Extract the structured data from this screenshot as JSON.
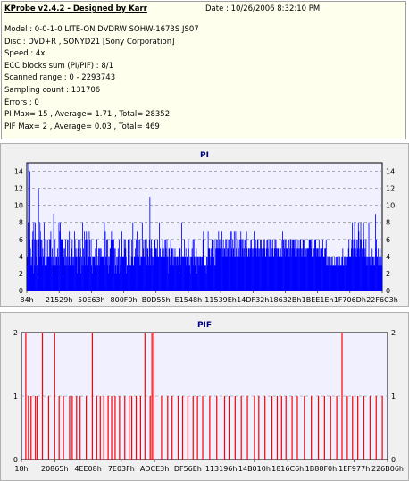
{
  "header": {
    "title": "KProbe v2.4.2 - Designed by Karr",
    "date": "Date : 10/26/2006 8:32:10 PM"
  },
  "info": [
    "Model : 0-0-1-0 LITE-ON DVDRW SOHW-1673S JS07",
    "Disc : DVD+R , SONYD21 [Sony Corporation]",
    "Speed : 4x",
    "ECC blocks sum (PI/PIF) : 8/1",
    "Scanned range : 0 - 2293743",
    "Sampling count : 131706",
    "Errors : 0",
    "PI Max= 15 , Average= 1.71 , Total= 28352",
    "PIF Max= 2 , Average= 0.03 , Total= 469"
  ],
  "colors": {
    "pi_series": "#0000ff",
    "pif_series": "#ff0000",
    "plot_bg": "#f0f0ff",
    "panel_bg": "#f0f0f0",
    "grid": "#808080"
  },
  "chart_data": [
    {
      "type": "bar",
      "title": "PI",
      "ylim": [
        0,
        15
      ],
      "yticks": [
        0,
        2,
        4,
        6,
        8,
        10,
        12,
        14
      ],
      "xticks": [
        "84h",
        "21529h",
        "50E63h",
        "800F0h",
        "B0D55h",
        "E1548h",
        "11539Eh",
        "14DF32h",
        "18632Bh",
        "1BEE1Eh",
        "1F706Dh",
        "22F6C3h"
      ],
      "grid": true,
      "series": [
        {
          "values": [
            3,
            4,
            8,
            15,
            6,
            6,
            14,
            5,
            3,
            4,
            3,
            6,
            7,
            2,
            8,
            6,
            3,
            8,
            6,
            4,
            6,
            3,
            2,
            5,
            12,
            6,
            4,
            8,
            7,
            6,
            4,
            6,
            3,
            5,
            4,
            4,
            8,
            3,
            3,
            6,
            6,
            4,
            3,
            6,
            4,
            4,
            4,
            6,
            4,
            6,
            7,
            4,
            3,
            5,
            3,
            4,
            9,
            2,
            3,
            6,
            4,
            3,
            4,
            4,
            5,
            3,
            4,
            8,
            3,
            7,
            8,
            6,
            6,
            6,
            6,
            4,
            2,
            4,
            5,
            3,
            5,
            6,
            3,
            4,
            3,
            6,
            6,
            3,
            4,
            7,
            4,
            3,
            3,
            4,
            5,
            6,
            4,
            3,
            4,
            3,
            7,
            6,
            4,
            5,
            4,
            2,
            4,
            5,
            6,
            6,
            2,
            4,
            6,
            5,
            2,
            4,
            3,
            8,
            3,
            5,
            4,
            7,
            6,
            3,
            6,
            7,
            3,
            6,
            6,
            4,
            4,
            7,
            6,
            4,
            4,
            6,
            3,
            2,
            4,
            4,
            4,
            4,
            4,
            3,
            5,
            5,
            2,
            6,
            3,
            3,
            4,
            5,
            3,
            5,
            4,
            5,
            5,
            4,
            4,
            4,
            4,
            4,
            5,
            8,
            3,
            7,
            4,
            4,
            6,
            3,
            6,
            2,
            4,
            3,
            4,
            5,
            5,
            6,
            7,
            6,
            6,
            6,
            5,
            6,
            5,
            2,
            5,
            3,
            2,
            4,
            3,
            4,
            5,
            4,
            6,
            2,
            4,
            3,
            4,
            6,
            7,
            4,
            4,
            4,
            4,
            6,
            5,
            6,
            5,
            4,
            2,
            3,
            3,
            6,
            6,
            6,
            6,
            3,
            3,
            3,
            4,
            6,
            4,
            8,
            3,
            3,
            4,
            4,
            5,
            4,
            6,
            4,
            7,
            4,
            6,
            6,
            4,
            3,
            6,
            4,
            3,
            4,
            4,
            8,
            4,
            5,
            6,
            4,
            4,
            6,
            4,
            4,
            6,
            3,
            5,
            5,
            4,
            3,
            6,
            11,
            3,
            5,
            6,
            5,
            4,
            3,
            4,
            4,
            4,
            6,
            6,
            5,
            5,
            5,
            4,
            6,
            4,
            4,
            4,
            8,
            4,
            5,
            4,
            4,
            4,
            5,
            6,
            4,
            5,
            4,
            4,
            6,
            6,
            5,
            4,
            6,
            4,
            4,
            2,
            5,
            5,
            4,
            3,
            6,
            4,
            5,
            5,
            3,
            5,
            3,
            4,
            4,
            5,
            4,
            4,
            3,
            4,
            4,
            3,
            4,
            4,
            2,
            5,
            5,
            3,
            4,
            8,
            4,
            4,
            4,
            4,
            4,
            6,
            4,
            4,
            5,
            3,
            4,
            4,
            4,
            6,
            5,
            3,
            3,
            4,
            2,
            4,
            4,
            5,
            4,
            6,
            3,
            6,
            4,
            4,
            3,
            2,
            5,
            4,
            2,
            4,
            4,
            3,
            4,
            3,
            4,
            4,
            3,
            4,
            4,
            4,
            6,
            7,
            4,
            3,
            3,
            3,
            3,
            2,
            4,
            4,
            3,
            7,
            5,
            5,
            5,
            4,
            3,
            5,
            4,
            6,
            6,
            4,
            4,
            4,
            6,
            3,
            3,
            5,
            6,
            5,
            6,
            5,
            5,
            7,
            6,
            5,
            5,
            6,
            6,
            4,
            7,
            5,
            4,
            6,
            4,
            5,
            5,
            4,
            6,
            4,
            6,
            4,
            5,
            5,
            6,
            4,
            6,
            6,
            7,
            4,
            7,
            5,
            4,
            6,
            5,
            5,
            7,
            4,
            4,
            7,
            5,
            4,
            4,
            6,
            4,
            5,
            4,
            6,
            4,
            6,
            7,
            4,
            6,
            6,
            5,
            4,
            6,
            5,
            4,
            6,
            4,
            6,
            7,
            5,
            4,
            4,
            5,
            5,
            5,
            4,
            5,
            6,
            6,
            5,
            4,
            5,
            4,
            5,
            7,
            5,
            6,
            6,
            5,
            5,
            4,
            6,
            6,
            5,
            4,
            5,
            4,
            6,
            5,
            6,
            4,
            5,
            4,
            5,
            6,
            5,
            6,
            5,
            4,
            4,
            5,
            6,
            6,
            5,
            4,
            6,
            4,
            4,
            6,
            6,
            6,
            4,
            5,
            6,
            5,
            4,
            4,
            5,
            6,
            5,
            6,
            5,
            5,
            4,
            5,
            5,
            4,
            4,
            5,
            5,
            5,
            4,
            4,
            6,
            7,
            4,
            6,
            6,
            5,
            4,
            6,
            6,
            5,
            5,
            5,
            4,
            6,
            4,
            6,
            5,
            4,
            6,
            6,
            4,
            5,
            6,
            6,
            6,
            6,
            5,
            6,
            4,
            5,
            6,
            5,
            4,
            5,
            6,
            5,
            4,
            5,
            6,
            6,
            5,
            4,
            5,
            4,
            6,
            6,
            6,
            4,
            4,
            5,
            4,
            5,
            4,
            5,
            5,
            5,
            5,
            6,
            6,
            6,
            6,
            5,
            6,
            4,
            4,
            4,
            5,
            4,
            5,
            6,
            6,
            6,
            4,
            5,
            5,
            5,
            4,
            5,
            6,
            4,
            4,
            5,
            5,
            5,
            5,
            5,
            6,
            4,
            4,
            4,
            5,
            5,
            5,
            6,
            3,
            3,
            4,
            3,
            4,
            4,
            3,
            3,
            4,
            3,
            3,
            4,
            4,
            3,
            3,
            3,
            3,
            4,
            3,
            3,
            4,
            3,
            4,
            3,
            4,
            4,
            3,
            3,
            4,
            3,
            3,
            3,
            4,
            4,
            5,
            3,
            3,
            4,
            3,
            4,
            3,
            4,
            4,
            3,
            4,
            4,
            5,
            6,
            4,
            4,
            4,
            4,
            5,
            6,
            8,
            6,
            4,
            5,
            6,
            8,
            6,
            4,
            5,
            6,
            4,
            5,
            6,
            8,
            7,
            4,
            5,
            6,
            8,
            6,
            4,
            5,
            4,
            6,
            8,
            6,
            4,
            5,
            4,
            6,
            4,
            3,
            4,
            3,
            4,
            8,
            4,
            3,
            4,
            3,
            4,
            3,
            5,
            4,
            4,
            4,
            3,
            3,
            4,
            9,
            5,
            6,
            4,
            4,
            3,
            5,
            4,
            3,
            4,
            5,
            3,
            4,
            3,
            4
          ]
        }
      ]
    },
    {
      "type": "bar",
      "title": "PIF",
      "ylim": [
        0,
        2
      ],
      "yticks": [
        0,
        1,
        2
      ],
      "xticks": [
        "18h",
        "20865h",
        "4EE08h",
        "7E03Fh",
        "ADCE3h",
        "DF56Eh",
        "113196h",
        "14B010h",
        "1816C6h",
        "1B88F0h",
        "1EF977h",
        "226B06h"
      ],
      "grid": true,
      "series": [
        {
          "points": [
            [
              5,
              2
            ],
            [
              8,
              1
            ],
            [
              11,
              1
            ],
            [
              16,
              1
            ],
            [
              18,
              1
            ],
            [
              24,
              2
            ],
            [
              31,
              1
            ],
            [
              38,
              2
            ],
            [
              43,
              1
            ],
            [
              48,
              1
            ],
            [
              55,
              1
            ],
            [
              58,
              1
            ],
            [
              63,
              1
            ],
            [
              67,
              1
            ],
            [
              74,
              1
            ],
            [
              81,
              2
            ],
            [
              86,
              1
            ],
            [
              90,
              1
            ],
            [
              94,
              1
            ],
            [
              99,
              1
            ],
            [
              103,
              1
            ],
            [
              107,
              1
            ],
            [
              112,
              1
            ],
            [
              118,
              1
            ],
            [
              123,
              1
            ],
            [
              126,
              1
            ],
            [
              131,
              1
            ],
            [
              136,
              1
            ],
            [
              141,
              2
            ],
            [
              147,
              1
            ],
            [
              149,
              2
            ],
            [
              151,
              2
            ],
            [
              160,
              1
            ],
            [
              167,
              1
            ],
            [
              172,
              1
            ],
            [
              179,
              1
            ],
            [
              184,
              1
            ],
            [
              190,
              1
            ],
            [
              196,
              1
            ],
            [
              201,
              1
            ],
            [
              207,
              1
            ],
            [
              215,
              1
            ],
            [
              223,
              1
            ],
            [
              232,
              1
            ],
            [
              237,
              1
            ],
            [
              244,
              1
            ],
            [
              251,
              1
            ],
            [
              258,
              1
            ],
            [
              266,
              1
            ],
            [
              271,
              1
            ],
            [
              278,
              1
            ],
            [
              286,
              1
            ],
            [
              292,
              1
            ],
            [
              297,
              1
            ],
            [
              302,
              1
            ],
            [
              309,
              1
            ],
            [
              315,
              1
            ],
            [
              323,
              1
            ],
            [
              331,
              1
            ],
            [
              339,
              1
            ],
            [
              346,
              1
            ],
            [
              353,
              1
            ],
            [
              360,
              1
            ],
            [
              366,
              2
            ],
            [
              372,
              1
            ],
            [
              378,
              1
            ],
            [
              384,
              1
            ],
            [
              391,
              1
            ],
            [
              398,
              1
            ],
            [
              405,
              1
            ],
            [
              412,
              1
            ]
          ],
          "xrange": [
            0,
            418
          ]
        }
      ]
    }
  ]
}
